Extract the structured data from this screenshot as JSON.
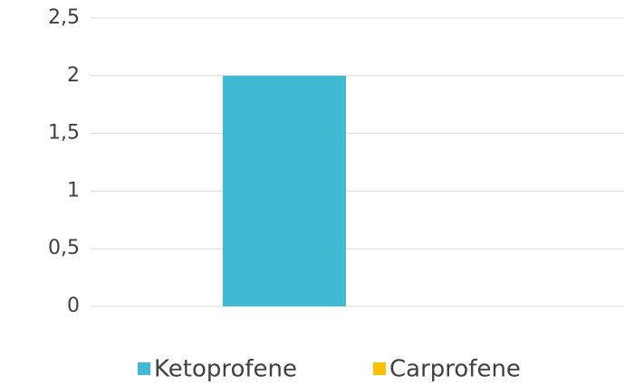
{
  "chart_data": {
    "type": "bar",
    "categories": [
      null
    ],
    "series": [
      {
        "name": "Ketoprofene",
        "color": "#40bad2",
        "values": [
          2
        ]
      },
      {
        "name": "Carprofene",
        "color": "#ffc000",
        "values": [
          0
        ]
      }
    ],
    "ylim": [
      0,
      2.5
    ],
    "yticks": [
      0,
      {
        "value": 0.5,
        "label": "0,5"
      },
      1,
      {
        "value": 1.5,
        "label": "1,5"
      },
      2,
      {
        "value": 2.5,
        "label": "2,5"
      }
    ],
    "grid": true,
    "legend": "bottom"
  }
}
